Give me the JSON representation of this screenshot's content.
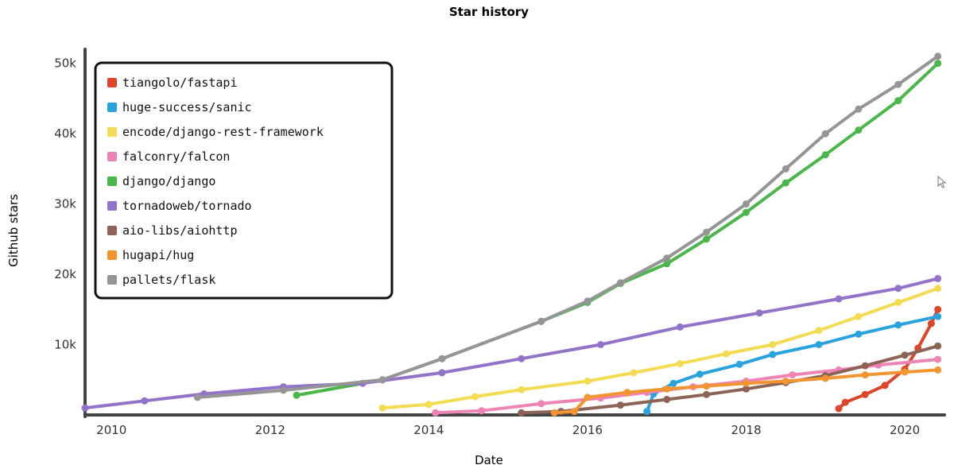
{
  "chart_data": {
    "type": "line",
    "title": "Star history",
    "xlabel": "Date",
    "ylabel": "Github stars",
    "x_ticks": [
      "2010",
      "2012",
      "2014",
      "2016",
      "2018",
      "2020"
    ],
    "y_ticks": [
      "10k",
      "20k",
      "30k",
      "40k",
      "50k"
    ],
    "xlim": [
      "2009-09",
      "2020-07"
    ],
    "ylim": [
      0,
      52000
    ],
    "legend_position": "top-left",
    "series": [
      {
        "name": "tiangolo/fastapi",
        "color": "#dd4528",
        "points": [
          [
            "2019-03",
            900
          ],
          [
            "2019-04",
            1800
          ],
          [
            "2019-07",
            2900
          ],
          [
            "2019-10",
            4200
          ],
          [
            "2020-01",
            6500
          ],
          [
            "2020-03",
            9500
          ],
          [
            "2020-05",
            13000
          ],
          [
            "2020-06",
            15000
          ]
        ]
      },
      {
        "name": "huge-success/sanic",
        "color": "#28a3dd",
        "points": [
          [
            "2016-10",
            500
          ],
          [
            "2016-11",
            3000
          ],
          [
            "2017-02",
            4500
          ],
          [
            "2017-06",
            5800
          ],
          [
            "2017-12",
            7200
          ],
          [
            "2018-05",
            8600
          ],
          [
            "2018-12",
            10000
          ],
          [
            "2019-06",
            11500
          ],
          [
            "2019-12",
            12800
          ],
          [
            "2020-06",
            14000
          ]
        ]
      },
      {
        "name": "encode/django-rest-framework",
        "color": "#f3db52",
        "points": [
          [
            "2013-06",
            1000
          ],
          [
            "2014-01",
            1500
          ],
          [
            "2014-08",
            2600
          ],
          [
            "2015-03",
            3600
          ],
          [
            "2016-01",
            4800
          ],
          [
            "2016-08",
            6000
          ],
          [
            "2017-03",
            7300
          ],
          [
            "2017-10",
            8700
          ],
          [
            "2018-05",
            10000
          ],
          [
            "2018-12",
            12000
          ],
          [
            "2019-06",
            14000
          ],
          [
            "2019-12",
            16000
          ],
          [
            "2020-06",
            18000
          ]
        ]
      },
      {
        "name": "falconry/falcon",
        "color": "#ed84b5",
        "points": [
          [
            "2014-02",
            300
          ],
          [
            "2014-09",
            600
          ],
          [
            "2015-06",
            1600
          ],
          [
            "2016-03",
            2400
          ],
          [
            "2016-10",
            3200
          ],
          [
            "2017-05",
            4000
          ],
          [
            "2018-01",
            4800
          ],
          [
            "2018-08",
            5700
          ],
          [
            "2019-03",
            6400
          ],
          [
            "2019-09",
            7100
          ],
          [
            "2020-06",
            7900
          ]
        ]
      },
      {
        "name": "django/django",
        "color": "#4ab74a",
        "points": [
          [
            "2012-05",
            2800
          ],
          [
            "2013-06",
            5000
          ],
          [
            "2014-03",
            8000
          ],
          [
            "2015-06",
            13300
          ],
          [
            "2016-01",
            16000
          ],
          [
            "2016-06",
            18700
          ],
          [
            "2017-01",
            21500
          ],
          [
            "2017-07",
            25000
          ],
          [
            "2018-01",
            28800
          ],
          [
            "2018-07",
            33000
          ],
          [
            "2019-01",
            37000
          ],
          [
            "2019-06",
            40500
          ],
          [
            "2019-12",
            44700
          ],
          [
            "2020-06",
            50000
          ]
        ]
      },
      {
        "name": "tornadoweb/tornado",
        "color": "#9372c9",
        "points": [
          [
            "2009-09",
            1000
          ],
          [
            "2010-06",
            2000
          ],
          [
            "2011-03",
            3000
          ],
          [
            "2012-03",
            4000
          ],
          [
            "2013-03",
            4500
          ],
          [
            "2014-03",
            6000
          ],
          [
            "2015-03",
            8000
          ],
          [
            "2016-03",
            10000
          ],
          [
            "2017-03",
            12500
          ],
          [
            "2018-03",
            14500
          ],
          [
            "2019-03",
            16500
          ],
          [
            "2019-12",
            18000
          ],
          [
            "2020-06",
            19400
          ]
        ]
      },
      {
        "name": "aio-libs/aiohttp",
        "color": "#8c6354",
        "points": [
          [
            "2015-03",
            300
          ],
          [
            "2015-09",
            500
          ],
          [
            "2016-06",
            1400
          ],
          [
            "2017-01",
            2200
          ],
          [
            "2017-07",
            2900
          ],
          [
            "2018-01",
            3700
          ],
          [
            "2018-07",
            4600
          ],
          [
            "2019-01",
            5600
          ],
          [
            "2019-07",
            7000
          ],
          [
            "2020-01",
            8500
          ],
          [
            "2020-06",
            9800
          ]
        ]
      },
      {
        "name": "hugapi/hug",
        "color": "#f29530",
        "points": [
          [
            "2015-08",
            300
          ],
          [
            "2015-11",
            500
          ],
          [
            "2016-01",
            2500
          ],
          [
            "2016-07",
            3200
          ],
          [
            "2017-01",
            3700
          ],
          [
            "2017-07",
            4100
          ],
          [
            "2018-01",
            4500
          ],
          [
            "2018-07",
            4800
          ],
          [
            "2019-01",
            5200
          ],
          [
            "2019-07",
            5700
          ],
          [
            "2020-01",
            6100
          ],
          [
            "2020-06",
            6400
          ]
        ]
      },
      {
        "name": "pallets/flask",
        "color": "#959595",
        "points": [
          [
            "2011-02",
            2500
          ],
          [
            "2012-03",
            3500
          ],
          [
            "2013-06",
            5000
          ],
          [
            "2014-03",
            8000
          ],
          [
            "2015-06",
            13300
          ],
          [
            "2016-01",
            16200
          ],
          [
            "2016-06",
            18800
          ],
          [
            "2017-01",
            22300
          ],
          [
            "2017-07",
            26000
          ],
          [
            "2018-01",
            30000
          ],
          [
            "2018-07",
            35000
          ],
          [
            "2019-01",
            40000
          ],
          [
            "2019-06",
            43500
          ],
          [
            "2019-12",
            47000
          ],
          [
            "2020-06",
            51000
          ]
        ]
      }
    ]
  }
}
